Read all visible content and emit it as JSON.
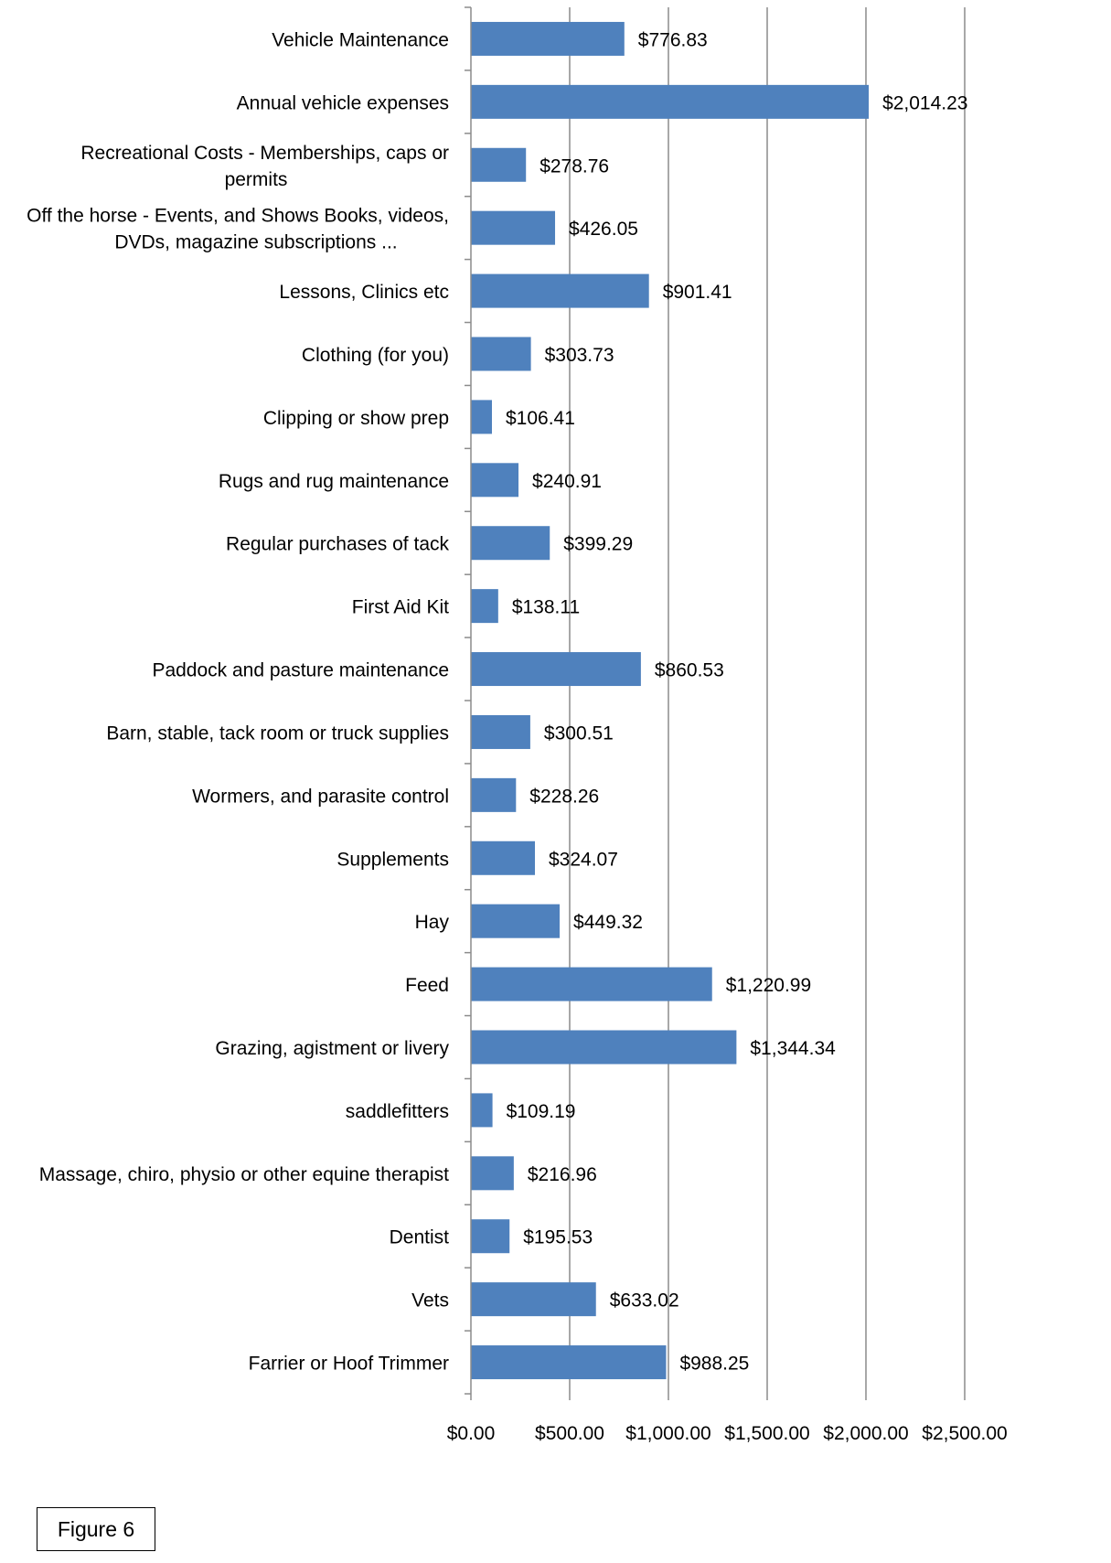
{
  "figure_label": "Figure 6",
  "chart_data": {
    "type": "bar",
    "orientation": "horizontal",
    "title": "",
    "xlabel": "",
    "ylabel": "",
    "xlim": [
      0,
      2500
    ],
    "grid": true,
    "bar_color": "#4f81bd",
    "tick_values": [
      0,
      500,
      1000,
      1500,
      2000,
      2500
    ],
    "tick_labels": [
      "$0.00",
      "$500.00",
      "$1,000.00",
      "$1,500.00",
      "$2,000.00",
      "$2,500.00"
    ],
    "categories": [
      "Vehicle Maintenance",
      "Annual vehicle expenses",
      "Recreational Costs - Memberships, caps or permits",
      "Off the horse - Events, and Shows Books, videos, DVDs, magazine subscriptions ...",
      "Lessons, Clinics etc",
      "Clothing (for you)",
      "Clipping or show prep",
      "Rugs and rug maintenance",
      "Regular purchases of tack",
      "First Aid Kit",
      "Paddock and pasture maintenance",
      "Barn, stable, tack room or truck supplies",
      "Wormers, and parasite control",
      "Supplements",
      "Hay",
      "Feed",
      "Grazing, agistment or livery",
      "saddlefitters",
      "Massage, chiro, physio or other equine therapist",
      "Dentist",
      "Vets",
      "Farrier or Hoof Trimmer"
    ],
    "category_lines": [
      [
        "Vehicle Maintenance"
      ],
      [
        "Annual vehicle expenses"
      ],
      [
        "Recreational Costs - Memberships, caps or",
        "permits"
      ],
      [
        "Off the horse - Events, and Shows Books, videos,",
        "DVDs, magazine subscriptions ..."
      ],
      [
        "Lessons, Clinics etc"
      ],
      [
        "Clothing (for you)"
      ],
      [
        "Clipping or show prep"
      ],
      [
        "Rugs and rug maintenance"
      ],
      [
        "Regular purchases of tack"
      ],
      [
        "First Aid Kit"
      ],
      [
        "Paddock and pasture maintenance"
      ],
      [
        "Barn, stable, tack room or truck supplies"
      ],
      [
        "Wormers, and parasite control"
      ],
      [
        "Supplements"
      ],
      [
        "Hay"
      ],
      [
        "Feed"
      ],
      [
        "Grazing, agistment or livery"
      ],
      [
        "saddlefitters"
      ],
      [
        "Massage, chiro, physio or other equine therapist"
      ],
      [
        "Dentist"
      ],
      [
        "Vets"
      ],
      [
        "Farrier or Hoof Trimmer"
      ]
    ],
    "values": [
      776.83,
      2014.23,
      278.76,
      426.05,
      901.41,
      303.73,
      106.41,
      240.91,
      399.29,
      138.11,
      860.53,
      300.51,
      228.26,
      324.07,
      449.32,
      1220.99,
      1344.34,
      109.19,
      216.96,
      195.53,
      633.02,
      988.25
    ],
    "value_labels": [
      "$776.83",
      "$2,014.23",
      "$278.76",
      "$426.05",
      "$901.41",
      "$303.73",
      "$106.41",
      "$240.91",
      "$399.29",
      "$138.11",
      "$860.53",
      "$300.51",
      "$228.26",
      "$324.07",
      "$449.32",
      "$1,220.99",
      "$1,344.34",
      "$109.19",
      "$216.96",
      "$195.53",
      "$633.02",
      "$988.25"
    ]
  }
}
